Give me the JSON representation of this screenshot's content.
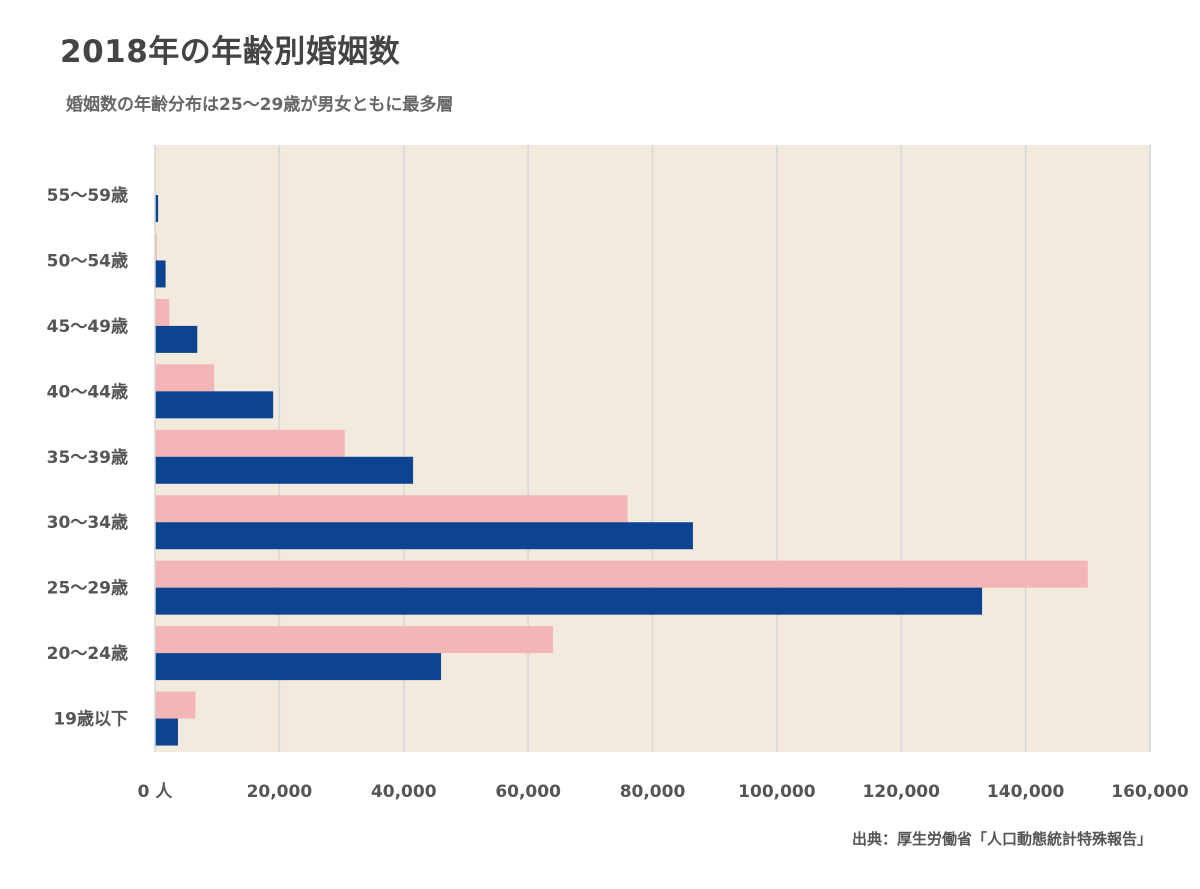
{
  "chart_data": {
    "type": "bar",
    "orientation": "horizontal",
    "title": "2018年の年齢別婚姻数",
    "subtitle": "婚姻数の年齢分布は25〜29歳が男女ともに最多層",
    "source": "出典：厚生労働省「人口動態統計特殊報告」",
    "categories": [
      "19歳以下",
      "20〜24歳",
      "25〜29歳",
      "30〜34歳",
      "35〜39歳",
      "40〜44歳",
      "45〜49歳",
      "50〜54歳",
      "55〜59歳"
    ],
    "series": [
      {
        "color": "#f4b5b7",
        "values": [
          6500,
          64000,
          150000,
          76000,
          30500,
          9500,
          2300,
          300,
          0
        ]
      },
      {
        "color": "#0d4491",
        "values": [
          3700,
          46000,
          133000,
          86500,
          41500,
          19000,
          6800,
          1700,
          500
        ]
      }
    ],
    "xlim": [
      0,
      160000
    ],
    "xticks": [
      0,
      20000,
      40000,
      60000,
      80000,
      100000,
      120000,
      140000,
      160000
    ],
    "xtick_labels": [
      "0 人",
      "20,000",
      "40,000",
      "60,000",
      "80,000",
      "100,000",
      "120,000",
      "140,000",
      "160,000"
    ],
    "grid": "vertical",
    "plot_background": "#f2ebdd",
    "grid_color": "#d3d6db"
  }
}
